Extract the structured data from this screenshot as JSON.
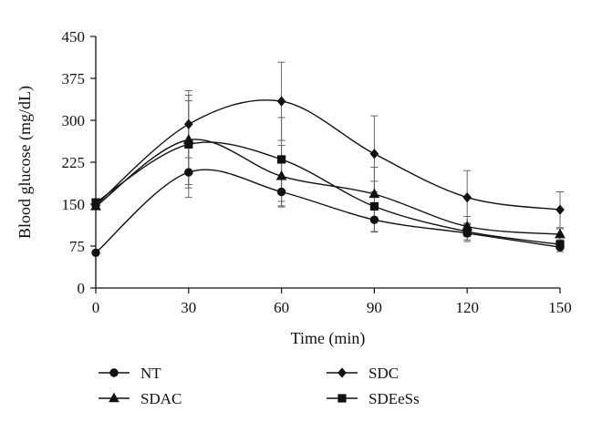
{
  "chart_data": {
    "type": "line",
    "title": "",
    "xlabel": "Time (min)",
    "ylabel": "Blood glucose (mg/dL)",
    "x": [
      0,
      30,
      60,
      90,
      120,
      150
    ],
    "xlim": [
      0,
      150
    ],
    "ylim": [
      0,
      450
    ],
    "xticks": [
      "0",
      "30",
      "60",
      "90",
      "120",
      "150"
    ],
    "yticks": [
      "0",
      "75",
      "150",
      "225",
      "300",
      "375",
      "450"
    ],
    "grid": false,
    "legend_position": "bottom",
    "series": [
      {
        "name": "NT",
        "marker": "circle",
        "values": [
          63,
          207,
          172,
          122,
          98,
          73
        ],
        "error": [
          0,
          45,
          25,
          22,
          15,
          8
        ]
      },
      {
        "name": "SDAC",
        "marker": "triangle",
        "values": [
          146,
          265,
          200,
          168,
          110,
          96
        ],
        "error": [
          0,
          80,
          55,
          48,
          18,
          10
        ]
      },
      {
        "name": "SDC",
        "marker": "diamond",
        "values": [
          148,
          293,
          334,
          240,
          162,
          140
        ],
        "error": [
          0,
          60,
          70,
          68,
          48,
          32
        ]
      },
      {
        "name": "SDEeSs",
        "marker": "square",
        "values": [
          153,
          257,
          230,
          146,
          101,
          78
        ],
        "error": [
          0,
          78,
          75,
          45,
          15,
          8
        ]
      }
    ]
  }
}
